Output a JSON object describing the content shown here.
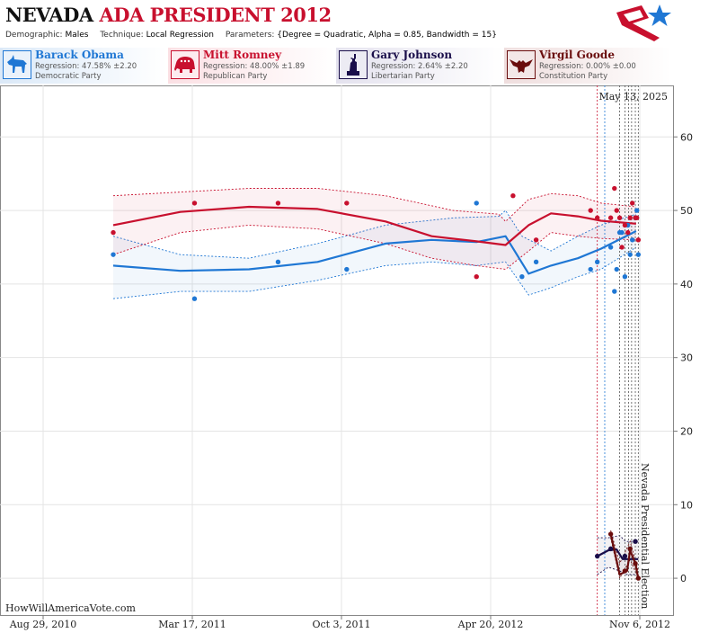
{
  "header": {
    "title_state": "NEVADA",
    "title_rest": "ADA PRESIDENT 2012",
    "demographic_label": "Demographic:",
    "demographic_value": "Males",
    "technique_label": "Technique:",
    "technique_value": "Local Regression",
    "parameters_label": "Parameters:",
    "parameters_value": "{Degree = Quadratic, Alpha = 0.85, Bandwidth = 15}"
  },
  "candidates": [
    {
      "name": "Barack Obama",
      "regression": "Regression: 47.58% ±2.20",
      "party": "Democratic Party",
      "color": "#1f77d4",
      "icon": "donkey-icon"
    },
    {
      "name": "Mitt Romney",
      "regression": "Regression: 48.00% ±1.89",
      "party": "Republican Party",
      "color": "#c8102e",
      "icon": "elephant-icon"
    },
    {
      "name": "Gary Johnson",
      "regression": "Regression: 2.64% ±2.20",
      "party": "Libertarian Party",
      "color": "#1a0e4a",
      "icon": "statue-of-liberty-icon"
    },
    {
      "name": "Virgil Goode",
      "regression": "Regression: 0.00% ±0.00",
      "party": "Constitution Party",
      "color": "#6a0d0d",
      "icon": "eagle-icon"
    }
  ],
  "chart_data": {
    "type": "line",
    "date_annotation": "May 13, 2025",
    "event_label": "Nevada Presidential Election",
    "watermark": "HowWillAmericaVote.com",
    "x_ticks": [
      "Aug 29, 2010",
      "Mar 17, 2011",
      "Oct 3, 2011",
      "Apr 20, 2012",
      "Nov 6, 2012"
    ],
    "x_range": [
      "2010-08-01",
      "2012-11-15"
    ],
    "y_ticks": [
      0,
      10,
      20,
      30,
      40,
      50,
      60
    ],
    "ylim": [
      -5,
      67
    ],
    "grid": true,
    "series": [
      {
        "name": "Barack Obama",
        "color": "#1f77d4",
        "trend": [
          [
            "2010-12-01",
            42.5
          ],
          [
            "2011-03-01",
            41.8
          ],
          [
            "2011-06-01",
            42.0
          ],
          [
            "2011-09-01",
            43.0
          ],
          [
            "2011-12-01",
            45.5
          ],
          [
            "2012-02-01",
            46.0
          ],
          [
            "2012-04-01",
            45.7
          ],
          [
            "2012-05-10",
            46.5
          ],
          [
            "2012-06-10",
            41.4
          ],
          [
            "2012-07-10",
            42.5
          ],
          [
            "2012-08-15",
            43.5
          ],
          [
            "2012-09-15",
            44.8
          ],
          [
            "2012-11-01",
            47.2
          ]
        ],
        "upper": [
          [
            "2010-12-01",
            46.5
          ],
          [
            "2011-03-01",
            44.0
          ],
          [
            "2011-06-01",
            43.5
          ],
          [
            "2011-09-01",
            45.5
          ],
          [
            "2011-12-01",
            48.0
          ],
          [
            "2012-03-01",
            49.0
          ],
          [
            "2012-05-01",
            49.2
          ],
          [
            "2012-05-10",
            50.0
          ],
          [
            "2012-06-01",
            46.5
          ],
          [
            "2012-07-10",
            44.5
          ],
          [
            "2012-08-15",
            46.5
          ],
          [
            "2012-09-15",
            48.0
          ],
          [
            "2012-11-01",
            49.5
          ]
        ],
        "lower": [
          [
            "2010-12-01",
            38.0
          ],
          [
            "2011-03-01",
            39.0
          ],
          [
            "2011-06-01",
            39.0
          ],
          [
            "2011-09-01",
            40.5
          ],
          [
            "2011-12-01",
            42.5
          ],
          [
            "2012-02-01",
            43.0
          ],
          [
            "2012-04-01",
            42.5
          ],
          [
            "2012-05-10",
            43.0
          ],
          [
            "2012-06-10",
            38.5
          ],
          [
            "2012-07-10",
            39.5
          ],
          [
            "2012-08-15",
            41.0
          ],
          [
            "2012-09-15",
            42.0
          ],
          [
            "2012-11-01",
            45.0
          ]
        ],
        "points": [
          [
            "2010-12-01",
            44
          ],
          [
            "2011-03-20",
            38
          ],
          [
            "2011-07-10",
            43
          ],
          [
            "2011-10-10",
            42
          ],
          [
            "2012-04-01",
            51
          ],
          [
            "2012-06-01",
            41
          ],
          [
            "2012-06-20",
            43
          ],
          [
            "2012-09-01",
            42
          ],
          [
            "2012-09-10",
            43
          ],
          [
            "2012-09-28",
            45
          ],
          [
            "2012-10-03",
            39
          ],
          [
            "2012-10-06",
            42
          ],
          [
            "2012-10-10",
            47
          ],
          [
            "2012-10-13",
            47
          ],
          [
            "2012-10-17",
            41
          ],
          [
            "2012-10-21",
            48
          ],
          [
            "2012-10-24",
            44
          ],
          [
            "2012-10-27",
            46
          ],
          [
            "2012-10-31",
            49
          ],
          [
            "2012-11-02",
            50
          ],
          [
            "2012-11-04",
            44
          ]
        ]
      },
      {
        "name": "Mitt Romney",
        "color": "#c8102e",
        "trend": [
          [
            "2010-12-01",
            48.0
          ],
          [
            "2011-03-01",
            49.8
          ],
          [
            "2011-06-01",
            50.5
          ],
          [
            "2011-09-01",
            50.2
          ],
          [
            "2011-12-01",
            48.5
          ],
          [
            "2012-02-01",
            46.5
          ],
          [
            "2012-04-01",
            45.8
          ],
          [
            "2012-05-10",
            45.3
          ],
          [
            "2012-06-10",
            48.0
          ],
          [
            "2012-07-10",
            49.6
          ],
          [
            "2012-08-15",
            49.2
          ],
          [
            "2012-09-15",
            48.6
          ],
          [
            "2012-11-01",
            48.2
          ]
        ],
        "upper": [
          [
            "2010-12-01",
            52.0
          ],
          [
            "2011-03-01",
            52.5
          ],
          [
            "2011-06-01",
            53.0
          ],
          [
            "2011-09-01",
            53.0
          ],
          [
            "2011-12-01",
            52.0
          ],
          [
            "2012-03-01",
            50.0
          ],
          [
            "2012-05-01",
            49.5
          ],
          [
            "2012-05-10",
            48.5
          ],
          [
            "2012-06-10",
            51.5
          ],
          [
            "2012-07-10",
            52.3
          ],
          [
            "2012-08-15",
            52.0
          ],
          [
            "2012-09-15",
            51.0
          ],
          [
            "2012-11-01",
            50.5
          ]
        ],
        "lower": [
          [
            "2010-12-01",
            44.0
          ],
          [
            "2011-03-01",
            47.0
          ],
          [
            "2011-06-01",
            48.0
          ],
          [
            "2011-09-01",
            47.5
          ],
          [
            "2011-12-01",
            45.5
          ],
          [
            "2012-02-01",
            43.5
          ],
          [
            "2012-04-01",
            42.5
          ],
          [
            "2012-05-10",
            42.0
          ],
          [
            "2012-06-10",
            44.5
          ],
          [
            "2012-07-10",
            47.0
          ],
          [
            "2012-08-15",
            46.5
          ],
          [
            "2012-09-15",
            46.2
          ],
          [
            "2012-11-01",
            46.0
          ]
        ],
        "points": [
          [
            "2010-12-01",
            47
          ],
          [
            "2011-03-20",
            51
          ],
          [
            "2011-07-10",
            51
          ],
          [
            "2011-10-10",
            51
          ],
          [
            "2012-04-01",
            41
          ],
          [
            "2012-05-20",
            52
          ],
          [
            "2012-06-20",
            46
          ],
          [
            "2012-09-01",
            50
          ],
          [
            "2012-09-10",
            49
          ],
          [
            "2012-09-28",
            49
          ],
          [
            "2012-10-03",
            53
          ],
          [
            "2012-10-06",
            50
          ],
          [
            "2012-10-10",
            49
          ],
          [
            "2012-10-13",
            45
          ],
          [
            "2012-10-17",
            48
          ],
          [
            "2012-10-21",
            47
          ],
          [
            "2012-10-24",
            49
          ],
          [
            "2012-10-27",
            51
          ],
          [
            "2012-10-31",
            49
          ],
          [
            "2012-11-02",
            49
          ],
          [
            "2012-11-04",
            46
          ]
        ]
      },
      {
        "name": "Gary Johnson",
        "color": "#1a0e4a",
        "trend": [
          [
            "2012-09-10",
            3.0
          ],
          [
            "2012-09-25",
            3.8
          ],
          [
            "2012-10-06",
            3.9
          ],
          [
            "2012-10-14",
            2.6
          ],
          [
            "2012-10-22",
            2.6
          ],
          [
            "2012-11-04",
            2.6
          ]
        ],
        "upper": [
          [
            "2012-09-10",
            5.5
          ],
          [
            "2012-09-25",
            5.5
          ],
          [
            "2012-10-10",
            5.8
          ],
          [
            "2012-10-18",
            5.0
          ],
          [
            "2012-11-04",
            5.0
          ]
        ],
        "lower": [
          [
            "2012-09-10",
            0.5
          ],
          [
            "2012-09-25",
            1.5
          ],
          [
            "2012-10-10",
            1.0
          ],
          [
            "2012-10-18",
            0.5
          ],
          [
            "2012-11-04",
            0.5
          ]
        ],
        "points": [
          [
            "2012-09-10",
            3
          ],
          [
            "2012-09-28",
            4
          ],
          [
            "2012-10-17",
            3
          ],
          [
            "2012-10-31",
            5
          ]
        ]
      },
      {
        "name": "Virgil Goode",
        "color": "#6a0d0d",
        "trend": [
          [
            "2012-09-28",
            6.0
          ],
          [
            "2012-10-10",
            0.5
          ],
          [
            "2012-10-20",
            1.0
          ],
          [
            "2012-10-24",
            3.8
          ],
          [
            "2012-10-31",
            2.0
          ],
          [
            "2012-11-04",
            0.0
          ]
        ],
        "upper": [
          [
            "2012-09-28",
            6.5
          ],
          [
            "2012-10-10",
            2.0
          ],
          [
            "2012-10-24",
            5.0
          ],
          [
            "2012-11-04",
            1.0
          ]
        ],
        "lower": [
          [
            "2012-09-28",
            5.5
          ],
          [
            "2012-10-10",
            0.0
          ],
          [
            "2012-10-24",
            2.5
          ],
          [
            "2012-11-04",
            0.0
          ]
        ],
        "points": [
          [
            "2012-09-28",
            6
          ],
          [
            "2012-10-17",
            1
          ],
          [
            "2012-10-24",
            4
          ],
          [
            "2012-10-31",
            2
          ],
          [
            "2012-11-04",
            0
          ]
        ]
      }
    ],
    "poll_dates": [
      "2012-09-10",
      "2012-09-20",
      "2012-10-10",
      "2012-10-17",
      "2012-10-22",
      "2012-10-26",
      "2012-10-31",
      "2012-11-04"
    ]
  }
}
